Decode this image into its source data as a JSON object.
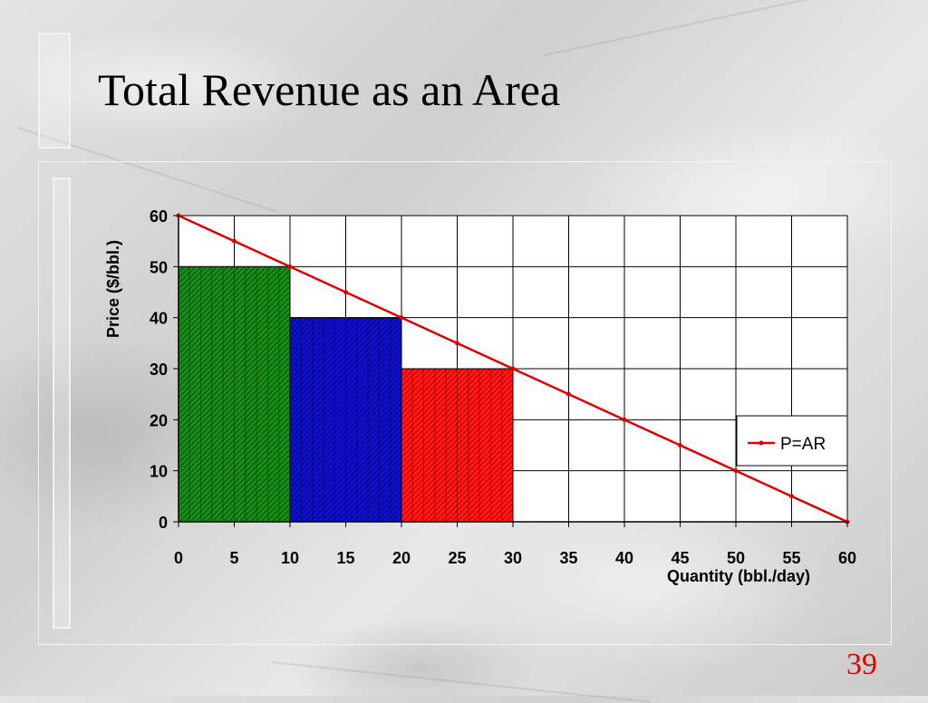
{
  "slide": {
    "title": "Total Revenue as an Area",
    "page_number": "39"
  },
  "colors": {
    "demand_line": "#e00000",
    "bar_1": "#1a8c1a",
    "bar_2": "#1010cc",
    "bar_3": "#ff1a1a",
    "grid": "#000000",
    "text": "#000000"
  },
  "chart_data": {
    "type": "line",
    "title": "",
    "xlabel": "Quantity (bbl./day)",
    "ylabel": "Price ($/bbl.)",
    "xlim": [
      0,
      60
    ],
    "ylim": [
      0,
      60
    ],
    "x_ticks": [
      0,
      5,
      10,
      15,
      20,
      25,
      30,
      35,
      40,
      45,
      50,
      55,
      60
    ],
    "y_ticks": [
      0,
      10,
      20,
      30,
      40,
      50,
      60
    ],
    "grid": true,
    "legend_position": "right",
    "series": [
      {
        "name": "P=AR",
        "type": "line",
        "x": [
          0,
          5,
          10,
          15,
          20,
          25,
          30,
          35,
          40,
          45,
          50,
          55,
          60
        ],
        "y": [
          60,
          55,
          50,
          45,
          40,
          35,
          30,
          25,
          20,
          15,
          10,
          5,
          0
        ]
      }
    ],
    "areas": [
      {
        "x_start": 0,
        "x_end": 10,
        "height": 50,
        "color": "green"
      },
      {
        "x_start": 10,
        "x_end": 20,
        "height": 40,
        "color": "blue"
      },
      {
        "x_start": 20,
        "x_end": 30,
        "height": 30,
        "color": "red"
      }
    ]
  }
}
